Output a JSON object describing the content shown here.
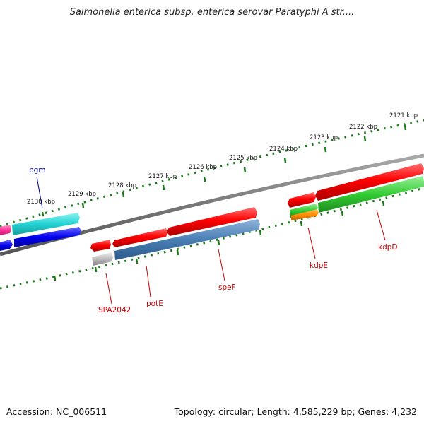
{
  "title": "Salmonella enterica subsp. enterica serovar Paratyphi A str....",
  "footer": {
    "accession": "Accession: NC_006511",
    "topology": "Topology: circular; Length: 4,585,229 bp; Genes: 4,232"
  },
  "scale_labels": [
    "2130 kbp",
    "2129 kbp",
    "2128 kbp",
    "2127 kbp",
    "2126 kbp",
    "2125 kbp",
    "2124 kbp",
    "2123 kbp",
    "2122 kbp",
    "2121 kbp"
  ],
  "gene_labels": [
    "pgm",
    "SPA2042",
    "potE",
    "speF",
    "kdpE",
    "kdpD"
  ],
  "colors": {
    "backbone": "#7a7a7a",
    "scale_ticks": "#1a7a1a",
    "gene_red": "#ff0000",
    "gene_steelblue": "#4a7fb5",
    "gene_green": "#33cc33",
    "gene_orange": "#ff8c00",
    "gene_cyan": "#22d3d3",
    "gene_blue": "#0000ee",
    "gene_pink": "#ff3399",
    "gene_gray": "#bbbbbb",
    "label_red": "#cc0000",
    "label_blue": "#00008b"
  }
}
